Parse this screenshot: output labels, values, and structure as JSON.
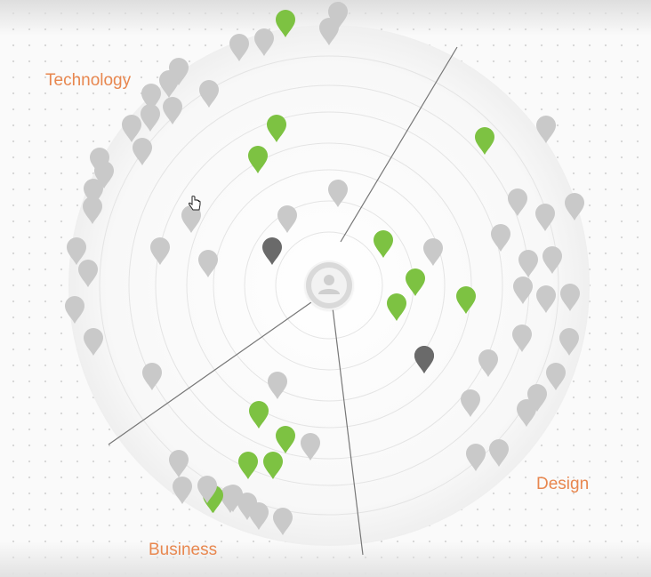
{
  "sectors": [
    {
      "label": "Technology"
    },
    {
      "label": "Business"
    },
    {
      "label": "Design"
    }
  ],
  "icons": {
    "center": "user-avatar-icon",
    "marker": "map-pin-icon",
    "cursor": "hand-pointer-icon"
  },
  "colors": {
    "label": "#e8874f",
    "pin_default": "#c9c9c9",
    "pin_highlight": "#7dc242",
    "pin_selected": "#6a6a6a",
    "divider": "#777777",
    "ring": "#e4e4e4"
  },
  "markers": [
    {
      "status": "highlight"
    },
    {
      "status": "default"
    },
    {
      "status": "default"
    },
    {
      "status": "default"
    },
    {
      "status": "default"
    },
    {
      "status": "default"
    },
    {
      "status": "default"
    },
    {
      "status": "default"
    },
    {
      "status": "default"
    },
    {
      "status": "default"
    },
    {
      "status": "default"
    },
    {
      "status": "default"
    },
    {
      "status": "default"
    },
    {
      "status": "highlight"
    },
    {
      "status": "highlight"
    },
    {
      "status": "highlight"
    },
    {
      "status": "default"
    },
    {
      "status": "default"
    },
    {
      "status": "default"
    },
    {
      "status": "default"
    },
    {
      "status": "default"
    },
    {
      "status": "default"
    },
    {
      "status": "default"
    },
    {
      "status": "default"
    },
    {
      "status": "default"
    },
    {
      "status": "default"
    },
    {
      "status": "default"
    },
    {
      "status": "default"
    },
    {
      "status": "selected"
    },
    {
      "status": "default"
    },
    {
      "status": "default"
    },
    {
      "status": "highlight"
    },
    {
      "status": "default"
    },
    {
      "status": "default"
    },
    {
      "status": "highlight"
    },
    {
      "status": "default"
    },
    {
      "status": "default"
    },
    {
      "status": "selected"
    },
    {
      "status": "default"
    },
    {
      "status": "highlight"
    },
    {
      "status": "highlight"
    },
    {
      "status": "default"
    },
    {
      "status": "default"
    },
    {
      "status": "default"
    },
    {
      "status": "default"
    },
    {
      "status": "highlight"
    },
    {
      "status": "default"
    },
    {
      "status": "default"
    },
    {
      "status": "default"
    },
    {
      "status": "default"
    },
    {
      "status": "default"
    },
    {
      "status": "selected"
    },
    {
      "status": "default"
    },
    {
      "status": "default"
    },
    {
      "status": "default"
    },
    {
      "status": "default"
    },
    {
      "status": "default"
    },
    {
      "status": "default"
    },
    {
      "status": "default"
    },
    {
      "status": "highlight"
    },
    {
      "status": "highlight"
    },
    {
      "status": "default"
    },
    {
      "status": "highlight"
    },
    {
      "status": "highlight"
    },
    {
      "status": "default"
    },
    {
      "status": "default"
    },
    {
      "status": "highlight"
    },
    {
      "status": "default"
    },
    {
      "status": "default"
    },
    {
      "status": "default"
    },
    {
      "status": "default"
    },
    {
      "status": "default"
    },
    {
      "status": "default"
    }
  ]
}
